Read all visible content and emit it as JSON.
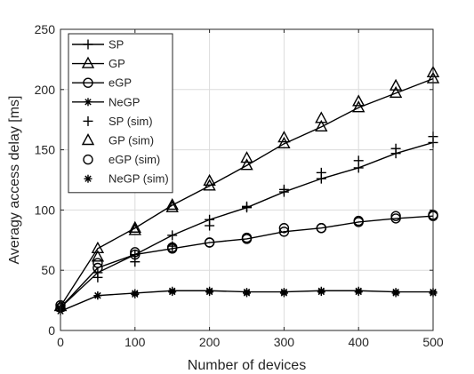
{
  "chart_data": {
    "type": "line",
    "title": "",
    "xlabel": "Number of devices",
    "ylabel": "Averagy access delay [ms]",
    "xlim": [
      0,
      500
    ],
    "ylim": [
      0,
      250
    ],
    "xticks": [
      0,
      100,
      200,
      300,
      400,
      500
    ],
    "yticks": [
      0,
      50,
      100,
      150,
      200,
      250
    ],
    "grid": true,
    "legend_position": "top-left",
    "x": [
      0,
      50,
      100,
      150,
      200,
      250,
      300,
      350,
      400,
      450,
      500
    ],
    "series": [
      {
        "name": "SP",
        "kind": "line",
        "marker": "plus",
        "values": [
          19,
          48,
          63,
          79,
          92,
          102,
          115,
          126,
          135,
          147,
          156
        ]
      },
      {
        "name": "GP",
        "kind": "line",
        "marker": "triangle",
        "values": [
          20,
          68,
          85,
          104,
          120,
          137,
          155,
          169,
          185,
          197,
          209
        ]
      },
      {
        "name": "eGP",
        "kind": "line",
        "marker": "circle",
        "values": [
          19,
          52,
          63,
          68,
          73,
          76,
          82,
          85,
          90,
          93,
          95
        ]
      },
      {
        "name": "NeGP",
        "kind": "line",
        "marker": "star",
        "values": [
          16,
          29,
          31,
          33,
          33,
          32,
          32,
          33,
          33,
          32,
          32
        ]
      },
      {
        "name": "SP (sim)",
        "kind": "markers",
        "marker": "plus",
        "values": [
          20,
          44,
          57,
          70,
          87,
          103,
          117,
          131,
          141,
          151,
          161
        ]
      },
      {
        "name": "GP (sim)",
        "kind": "markers",
        "marker": "triangle",
        "values": [
          20,
          61,
          83,
          102,
          124,
          143,
          160,
          176,
          190,
          203,
          214
        ]
      },
      {
        "name": "eGP (sim)",
        "kind": "markers",
        "marker": "circle",
        "values": [
          21,
          56,
          65,
          69,
          73,
          77,
          85,
          85,
          91,
          95,
          96
        ]
      },
      {
        "name": "NeGP (sim)",
        "kind": "markers",
        "marker": "star",
        "values": [
          18,
          29,
          30,
          32,
          32,
          31,
          31,
          32,
          32,
          31,
          31
        ]
      }
    ]
  }
}
